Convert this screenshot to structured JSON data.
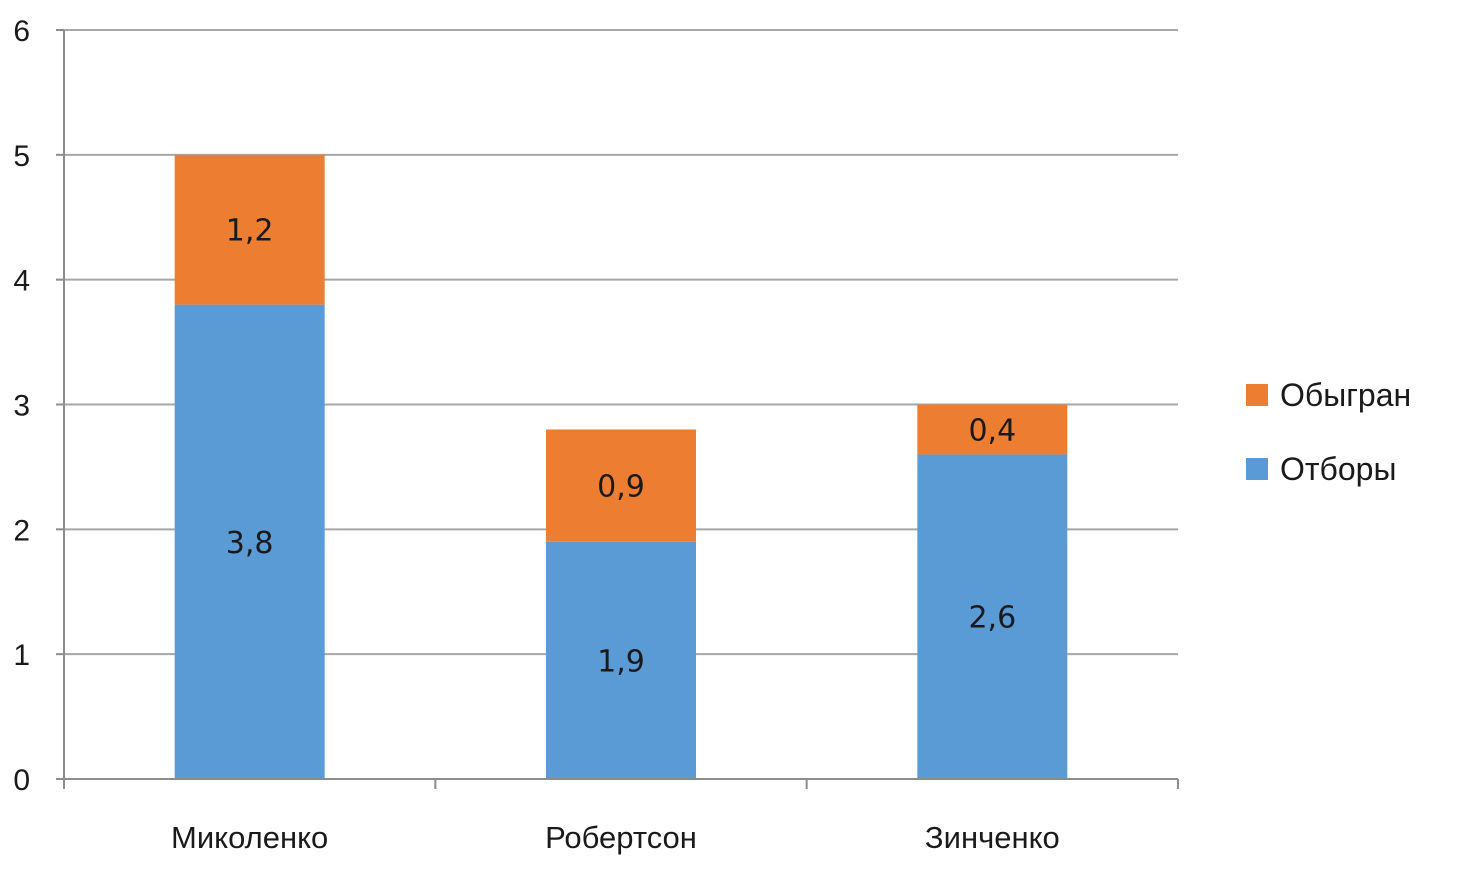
{
  "chart_data": {
    "type": "bar",
    "stacked": true,
    "categories": [
      "Миколенко",
      "Робертсон",
      "Зинченко"
    ],
    "series": [
      {
        "name": "Отборы",
        "values": [
          3.8,
          1.9,
          2.6
        ],
        "labels": [
          "3,8",
          "1,9",
          "2,6"
        ],
        "color": "#5B9BD5"
      },
      {
        "name": "Обыгран",
        "values": [
          1.2,
          0.9,
          0.4
        ],
        "labels": [
          "1,2",
          "0,9",
          "0,4"
        ],
        "color": "#ED7D31"
      }
    ],
    "ylim": [
      0,
      6
    ],
    "yticks": [
      "0",
      "1",
      "2",
      "3",
      "4",
      "5",
      "6"
    ],
    "grid": true,
    "legend_position": "right",
    "legend_order": [
      "Обыгран",
      "Отборы"
    ],
    "colors": {
      "gridline": "#A6A6A6",
      "axis": "#8C8C8C"
    }
  }
}
